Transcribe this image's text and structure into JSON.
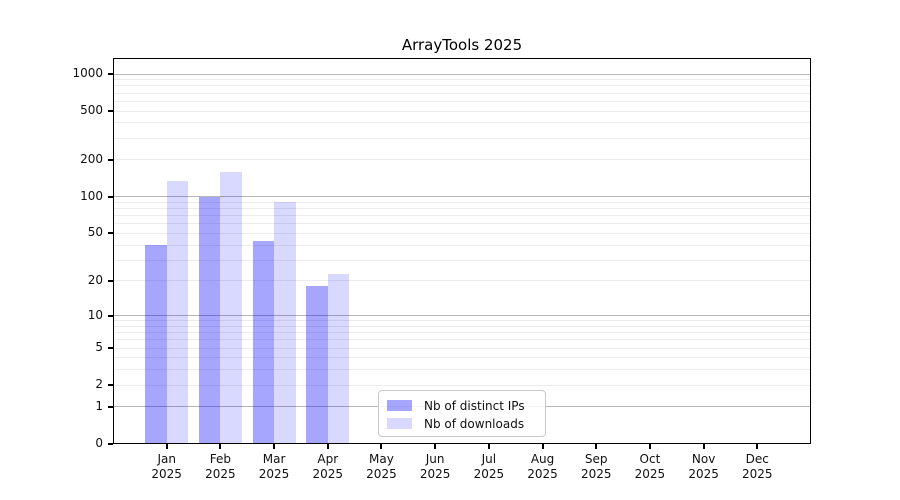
{
  "chart_data": {
    "type": "bar",
    "title": "ArrayTools 2025",
    "categories": [
      "Jan",
      "Feb",
      "Mar",
      "Apr",
      "May",
      "Jun",
      "Jul",
      "Aug",
      "Sep",
      "Oct",
      "Nov",
      "Dec"
    ],
    "category_year": "2025",
    "series": [
      {
        "name": "Nb of distinct IPs",
        "color": "rgba(0,0,255,0.35)",
        "values": [
          40,
          100,
          43,
          18,
          0,
          0,
          0,
          0,
          0,
          0,
          0,
          0
        ]
      },
      {
        "name": "Nb of downloads",
        "color": "rgba(0,0,255,0.15)",
        "values": [
          135,
          160,
          90,
          23,
          0,
          0,
          0,
          0,
          0,
          0,
          0,
          0
        ]
      }
    ],
    "yscale": "log1p",
    "y_tick_values": [
      0,
      1,
      2,
      5,
      10,
      20,
      50,
      100,
      200,
      500,
      1000
    ],
    "y_tick_labels": [
      "0",
      "1",
      "2",
      "5",
      "10",
      "20",
      "50",
      "100",
      "200",
      "500",
      "1000"
    ],
    "y_major_gridlines": [
      1,
      10,
      100,
      1000
    ],
    "ylim": [
      0,
      1350
    ],
    "grid": true,
    "legend_position": "lower center inside"
  },
  "colors": {
    "background": "#ffffff",
    "spine": "#000000",
    "grid_major": "#b6b6b6",
    "grid_minor": "#ececec",
    "tick": "#000000",
    "text": "#111111",
    "legend_border": "#c9c9c9",
    "legend_bg": "rgba(255,255,255,0.85)"
  }
}
